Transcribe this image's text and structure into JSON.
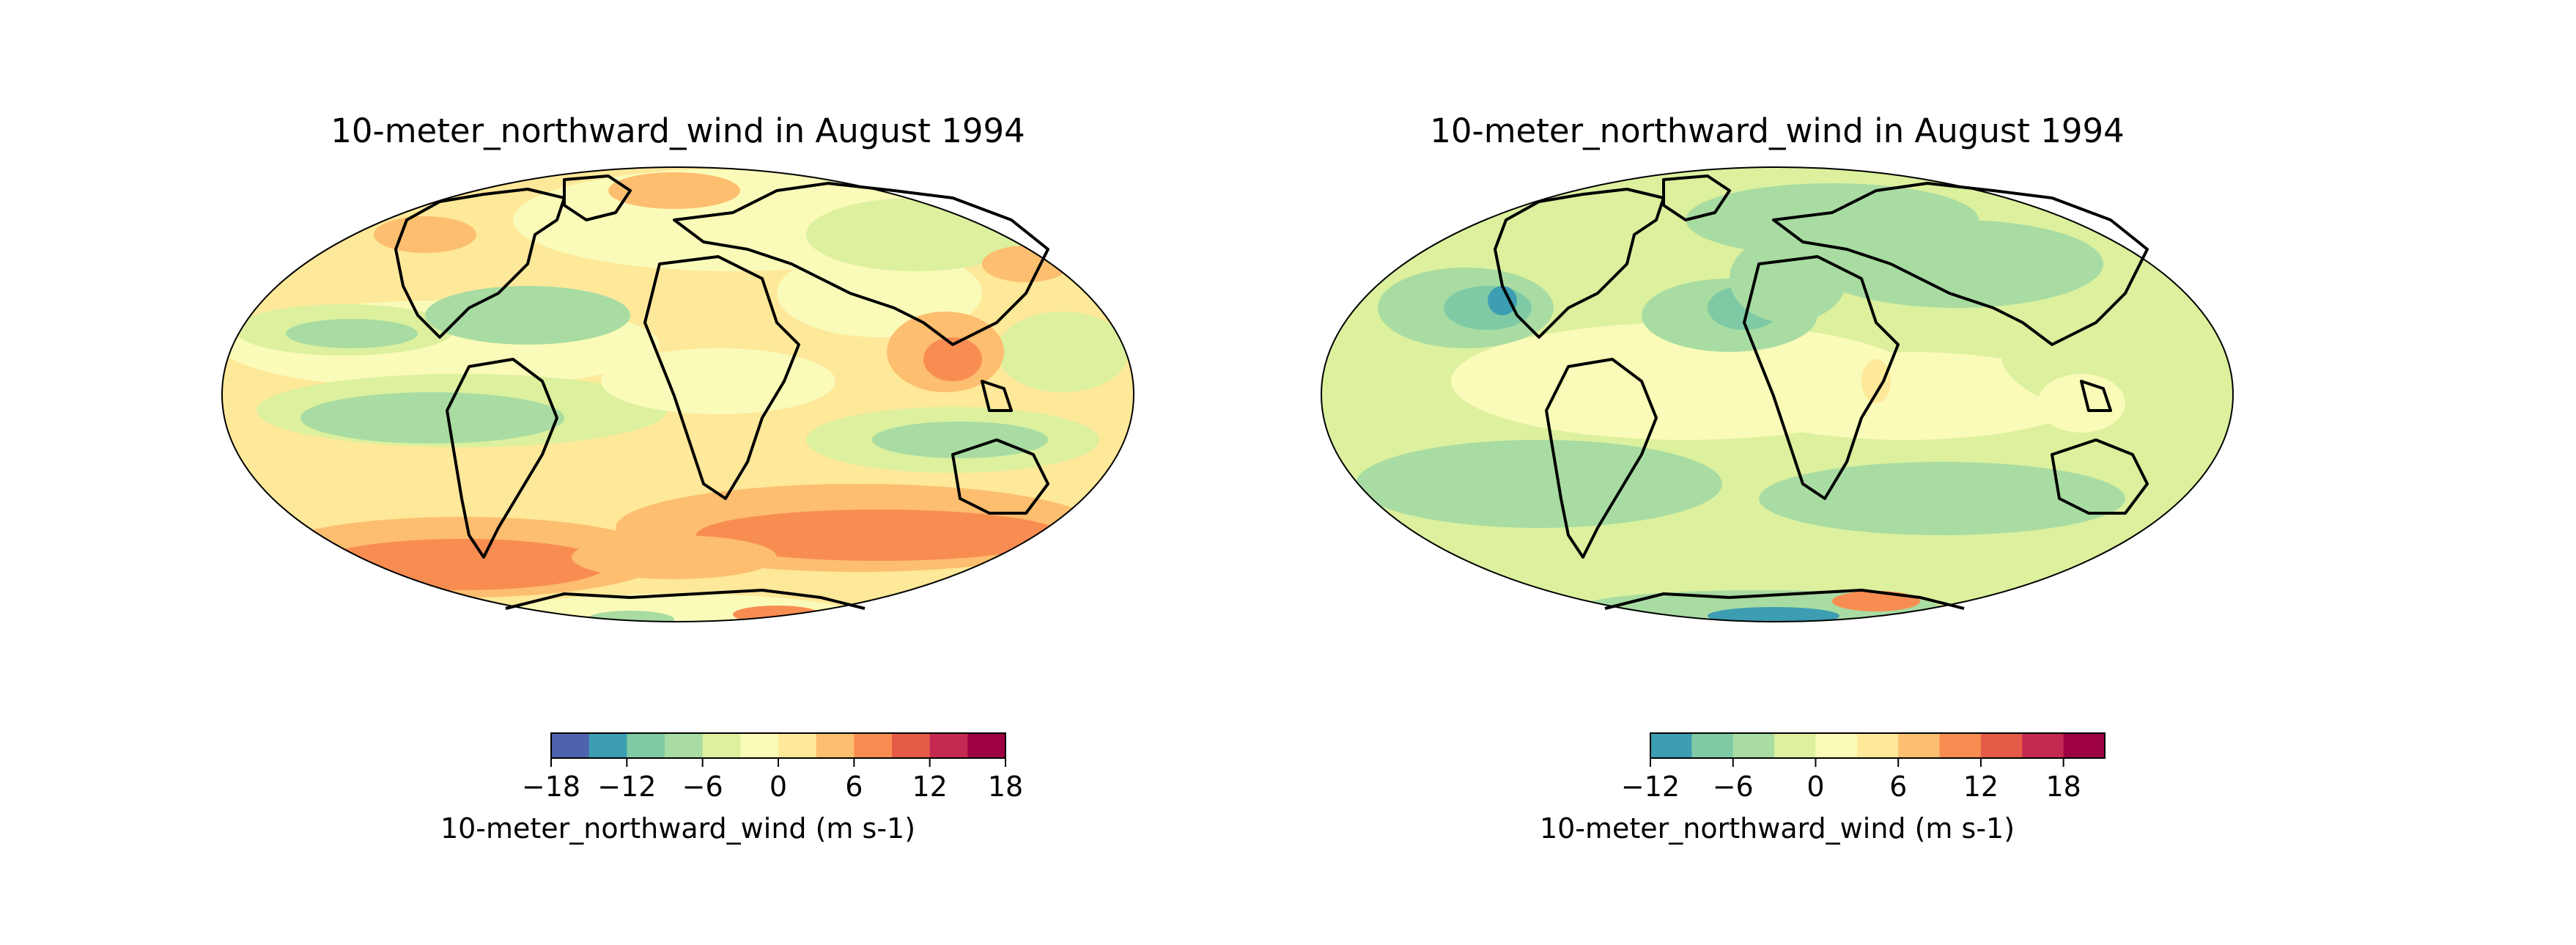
{
  "figure": {
    "maps": [
      {
        "title": "10-meter_northward_wind in August 1994",
        "colorbar": {
          "label": "10-meter_northward_wind (m s-1)",
          "levels": [
            -18,
            -15,
            -12,
            -9,
            -6,
            -3,
            0,
            3,
            6,
            9,
            12,
            15,
            18
          ],
          "tick_labels": [
            "−18",
            "−12",
            "−6",
            "0",
            "6",
            "12",
            "18"
          ],
          "tick_values": [
            -18,
            -12,
            -6,
            0,
            6,
            12,
            18
          ],
          "vmin": -18,
          "vmax": 18
        }
      },
      {
        "title": "10-meter_northward_wind in August 1994",
        "colorbar": {
          "label": "10-meter_northward_wind (m s-1)",
          "levels": [
            -12,
            -9,
            -6,
            -3,
            0,
            3,
            6,
            9,
            12,
            15,
            18,
            21
          ],
          "tick_labels": [
            "−12",
            "−6",
            "0",
            "6",
            "12",
            "18"
          ],
          "tick_values": [
            -12,
            -6,
            0,
            6,
            12,
            18
          ],
          "vmin": -12,
          "vmax": 21
        }
      }
    ],
    "colormap": [
      "#4f63ac",
      "#3d9db2",
      "#7fcaa4",
      "#a8dca2",
      "#dcf09e",
      "#fafbb8",
      "#fee89a",
      "#fdbe6f",
      "#f88d52",
      "#e45c48",
      "#c52951",
      "#9e0142"
    ],
    "projection": "mollweide"
  }
}
